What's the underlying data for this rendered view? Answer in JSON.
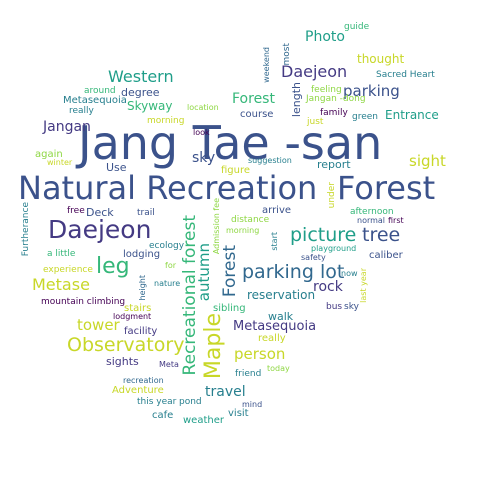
{
  "colors": {
    "teal": "#277f8e",
    "green": "#35b779",
    "lightgreen": "#8fd744",
    "yellow": "#c8d728",
    "navy": "#3b528b",
    "indigo": "#443a83",
    "purple": "#440154",
    "blue": "#31688e",
    "mid": "#1f9e89"
  },
  "words": [
    {
      "text": "Jang Tae -san",
      "color": "navy"
    },
    {
      "text": "Natural Recreation",
      "color": "navy"
    },
    {
      "text": "Forest",
      "color": "navy"
    },
    {
      "text": "Daejeon",
      "color": "indigo"
    },
    {
      "text": "picture",
      "color": "mid"
    },
    {
      "text": "tree",
      "color": "navy"
    },
    {
      "text": "parking lot",
      "color": "blue"
    },
    {
      "text": "Observatory",
      "color": "yellow"
    },
    {
      "text": "Maple",
      "color": "yellow"
    },
    {
      "text": "Recreational forest",
      "color": "green"
    },
    {
      "text": "autumn",
      "color": "mid"
    },
    {
      "text": "Forest",
      "color": "blue"
    },
    {
      "text": "leg",
      "color": "green"
    },
    {
      "text": "Metase",
      "color": "yellow"
    },
    {
      "text": "tower",
      "color": "yellow"
    },
    {
      "text": "person",
      "color": "yellow"
    },
    {
      "text": "Metasequoia",
      "color": "indigo"
    },
    {
      "text": "Western",
      "color": "mid"
    },
    {
      "text": "Daejeon",
      "color": "indigo"
    },
    {
      "text": "Photo",
      "color": "mid"
    },
    {
      "text": "parking",
      "color": "navy"
    },
    {
      "text": "Forest",
      "color": "green"
    },
    {
      "text": "Entrance",
      "color": "mid"
    },
    {
      "text": "sight",
      "color": "yellow"
    },
    {
      "text": "sky",
      "color": "navy"
    },
    {
      "text": "Jangan",
      "color": "indigo"
    },
    {
      "text": "travel",
      "color": "teal"
    },
    {
      "text": "rock",
      "color": "indigo"
    },
    {
      "text": "reservation",
      "color": "teal"
    },
    {
      "text": "thought",
      "color": "yellow"
    },
    {
      "text": "guide",
      "color": "green"
    },
    {
      "text": "most",
      "color": "blue"
    },
    {
      "text": "weekend",
      "color": "blue"
    },
    {
      "text": "length",
      "color": "navy"
    },
    {
      "text": "Sacred Heart",
      "color": "teal"
    },
    {
      "text": "feeling",
      "color": "lightgreen"
    },
    {
      "text": "Jangan -dong",
      "color": "lightgreen"
    },
    {
      "text": "family",
      "color": "purple"
    },
    {
      "text": "green",
      "color": "teal"
    },
    {
      "text": "just",
      "color": "yellow"
    },
    {
      "text": "degree",
      "color": "navy"
    },
    {
      "text": "around",
      "color": "green"
    },
    {
      "text": "Metasequoia",
      "color": "teal"
    },
    {
      "text": "Skyway",
      "color": "green"
    },
    {
      "text": "really",
      "color": "teal"
    },
    {
      "text": "location",
      "color": "lightgreen"
    },
    {
      "text": "course",
      "color": "navy"
    },
    {
      "text": "morning",
      "color": "yellow"
    },
    {
      "text": "look",
      "color": "purple"
    },
    {
      "text": "again",
      "color": "lightgreen"
    },
    {
      "text": "winter",
      "color": "yellow"
    },
    {
      "text": "Use",
      "color": "navy"
    },
    {
      "text": "figure",
      "color": "yellow"
    },
    {
      "text": "suggestion",
      "color": "teal"
    },
    {
      "text": "report",
      "color": "teal"
    },
    {
      "text": "under",
      "color": "yellow"
    },
    {
      "text": "Furtherance",
      "color": "teal"
    },
    {
      "text": "free",
      "color": "purple"
    },
    {
      "text": "Deck",
      "color": "navy"
    },
    {
      "text": "trail",
      "color": "navy"
    },
    {
      "text": "Admission fee",
      "color": "lightgreen"
    },
    {
      "text": "distance",
      "color": "lightgreen"
    },
    {
      "text": "morning",
      "color": "lightgreen"
    },
    {
      "text": "arrive",
      "color": "navy"
    },
    {
      "text": "afternoon",
      "color": "green"
    },
    {
      "text": "normal",
      "color": "navy"
    },
    {
      "text": "first",
      "color": "purple"
    },
    {
      "text": "start",
      "color": "teal"
    },
    {
      "text": "playground",
      "color": "mid"
    },
    {
      "text": "safety",
      "color": "navy"
    },
    {
      "text": "caliber",
      "color": "navy"
    },
    {
      "text": "ecology",
      "color": "teal"
    },
    {
      "text": "lodging",
      "color": "navy"
    },
    {
      "text": "a little",
      "color": "green"
    },
    {
      "text": "for",
      "color": "lightgreen"
    },
    {
      "text": "experience",
      "color": "yellow"
    },
    {
      "text": "nature",
      "color": "teal"
    },
    {
      "text": "height",
      "color": "blue"
    },
    {
      "text": "now",
      "color": "teal"
    },
    {
      "text": "last year",
      "color": "yellow"
    },
    {
      "text": "mountain climbing",
      "color": "purple"
    },
    {
      "text": "lodgment",
      "color": "purple"
    },
    {
      "text": "stairs",
      "color": "yellow"
    },
    {
      "text": "sibling",
      "color": "green"
    },
    {
      "text": "walk",
      "color": "teal"
    },
    {
      "text": "bus",
      "color": "indigo"
    },
    {
      "text": "sky",
      "color": "navy"
    },
    {
      "text": "facility",
      "color": "indigo"
    },
    {
      "text": "really",
      "color": "yellow"
    },
    {
      "text": "sights",
      "color": "indigo"
    },
    {
      "text": "Meta",
      "color": "indigo"
    },
    {
      "text": "friend",
      "color": "teal"
    },
    {
      "text": "today",
      "color": "lightgreen"
    },
    {
      "text": "recreation",
      "color": "blue"
    },
    {
      "text": "Adventure",
      "color": "yellow"
    },
    {
      "text": "this year",
      "color": "teal"
    },
    {
      "text": "pond",
      "color": "teal"
    },
    {
      "text": "visit",
      "color": "teal"
    },
    {
      "text": "mind",
      "color": "navy"
    },
    {
      "text": "cafe",
      "color": "teal"
    },
    {
      "text": "weather",
      "color": "mid"
    }
  ]
}
